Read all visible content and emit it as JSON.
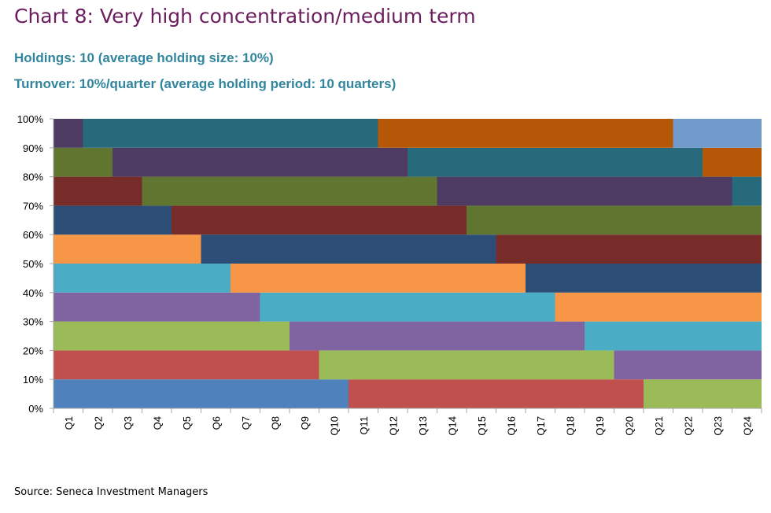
{
  "title": "Chart 8: Very high concentration/medium term",
  "subtitle1": "Holdings: 10 (average holding size: 10%)",
  "subtitle2": "Turnover: 10%/quarter (average holding period: 10 quarters)",
  "source": "Source: Seneca Investment Managers",
  "chart_data": {
    "type": "bar",
    "stacked": true,
    "categories": [
      "Q1",
      "Q2",
      "Q3",
      "Q4",
      "Q5",
      "Q6",
      "Q7",
      "Q8",
      "Q9",
      "Q10",
      "Q11",
      "Q12",
      "Q13",
      "Q14",
      "Q15",
      "Q16",
      "Q17",
      "Q18",
      "Q19",
      "Q20",
      "Q21",
      "Q22",
      "Q23",
      "Q24"
    ],
    "ylim": [
      0,
      100
    ],
    "yticks": [
      "0%",
      "10%",
      "20%",
      "30%",
      "40%",
      "50%",
      "60%",
      "70%",
      "80%",
      "90%",
      "100%"
    ],
    "grid": false,
    "legend": "none",
    "bands": [
      {
        "from": 0,
        "to": 10,
        "holdings": [
          {
            "start": "Q1",
            "end": "Q10",
            "color": "#4f81bd"
          },
          {
            "start": "Q11",
            "end": "Q20",
            "color": "#c0504d"
          },
          {
            "start": "Q21",
            "end": "Q24",
            "color": "#9bbb59"
          }
        ]
      },
      {
        "from": 10,
        "to": 20,
        "holdings": [
          {
            "start": "Q1",
            "end": "Q9",
            "color": "#c0504d"
          },
          {
            "start": "Q10",
            "end": "Q19",
            "color": "#9bbb59"
          },
          {
            "start": "Q20",
            "end": "Q24",
            "color": "#8064a2"
          }
        ]
      },
      {
        "from": 20,
        "to": 30,
        "holdings": [
          {
            "start": "Q1",
            "end": "Q8",
            "color": "#9bbb59"
          },
          {
            "start": "Q9",
            "end": "Q18",
            "color": "#8064a2"
          },
          {
            "start": "Q19",
            "end": "Q24",
            "color": "#4bacc6"
          }
        ]
      },
      {
        "from": 30,
        "to": 40,
        "holdings": [
          {
            "start": "Q1",
            "end": "Q7",
            "color": "#8064a2"
          },
          {
            "start": "Q8",
            "end": "Q17",
            "color": "#4bacc6"
          },
          {
            "start": "Q18",
            "end": "Q24",
            "color": "#f79646"
          }
        ]
      },
      {
        "from": 40,
        "to": 50,
        "holdings": [
          {
            "start": "Q1",
            "end": "Q6",
            "color": "#4bacc6"
          },
          {
            "start": "Q7",
            "end": "Q16",
            "color": "#f79646"
          },
          {
            "start": "Q17",
            "end": "Q24",
            "color": "#2c4d75"
          }
        ]
      },
      {
        "from": 50,
        "to": 60,
        "holdings": [
          {
            "start": "Q1",
            "end": "Q5",
            "color": "#f79646"
          },
          {
            "start": "Q6",
            "end": "Q15",
            "color": "#2c4d75"
          },
          {
            "start": "Q16",
            "end": "Q24",
            "color": "#772c2a"
          }
        ]
      },
      {
        "from": 60,
        "to": 70,
        "holdings": [
          {
            "start": "Q1",
            "end": "Q4",
            "color": "#2c4d75"
          },
          {
            "start": "Q5",
            "end": "Q14",
            "color": "#772c2a"
          },
          {
            "start": "Q15",
            "end": "Q24",
            "color": "#5f7530"
          }
        ]
      },
      {
        "from": 70,
        "to": 80,
        "holdings": [
          {
            "start": "Q1",
            "end": "Q3",
            "color": "#772c2a"
          },
          {
            "start": "Q4",
            "end": "Q13",
            "color": "#5f7530"
          },
          {
            "start": "Q14",
            "end": "Q23",
            "color": "#4d3b62"
          },
          {
            "start": "Q24",
            "end": "Q24",
            "color": "#276a7c"
          }
        ]
      },
      {
        "from": 80,
        "to": 90,
        "holdings": [
          {
            "start": "Q1",
            "end": "Q2",
            "color": "#5f7530"
          },
          {
            "start": "Q3",
            "end": "Q12",
            "color": "#4d3b62"
          },
          {
            "start": "Q13",
            "end": "Q22",
            "color": "#276a7c"
          },
          {
            "start": "Q23",
            "end": "Q24",
            "color": "#b65708"
          }
        ]
      },
      {
        "from": 90,
        "to": 100,
        "holdings": [
          {
            "start": "Q1",
            "end": "Q1",
            "color": "#4d3b62"
          },
          {
            "start": "Q2",
            "end": "Q11",
            "color": "#276a7c"
          },
          {
            "start": "Q12",
            "end": "Q21",
            "color": "#b65708"
          },
          {
            "start": "Q22",
            "end": "Q24",
            "color": "#729aca"
          }
        ]
      }
    ]
  }
}
